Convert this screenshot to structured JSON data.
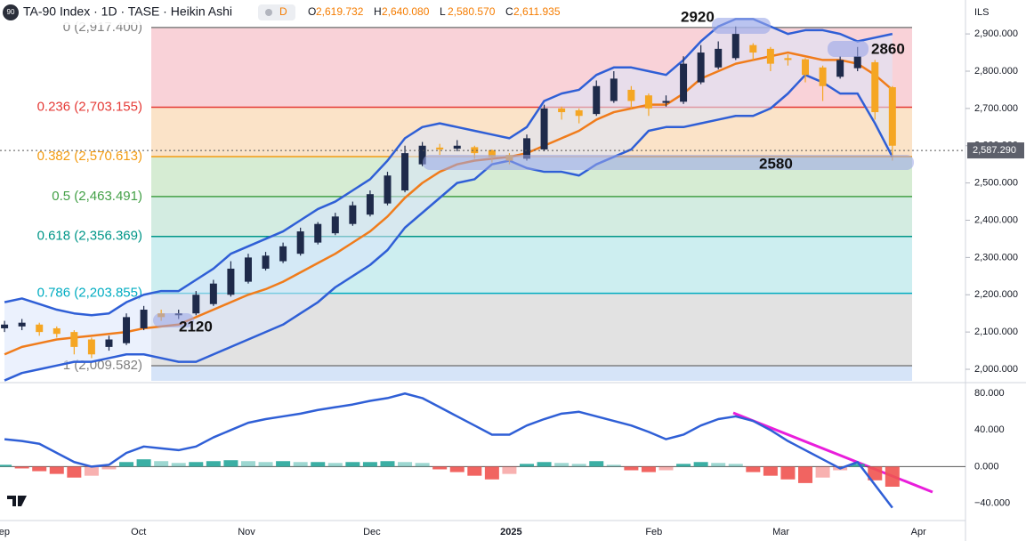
{
  "header": {
    "badge": "90",
    "title": "TA-90 Index · 1D · TASE · Heikin Ashi",
    "interval": "D",
    "ohlc": [
      {
        "key": "O",
        "text": "2,619.732"
      },
      {
        "key": "H",
        "text": "2,640.080"
      },
      {
        "key": "L",
        "text": "2,580.570"
      },
      {
        "key": "C",
        "text": "2,611.935"
      }
    ],
    "currency": "ILS"
  },
  "annotations": [
    "2920",
    "2860",
    "2580",
    "2120"
  ],
  "chart_data": [
    {
      "type": "candlestick",
      "xlim": [
        -0.26,
        55.2
      ],
      "ylim": [
        1969,
        2991
      ],
      "xticks": [
        {
          "value": -0.2,
          "label": "Sep"
        },
        {
          "value": 7.7,
          "label": "Oct"
        },
        {
          "value": 13.9,
          "label": "Nov"
        },
        {
          "value": 21.1,
          "label": "Dec"
        },
        {
          "value": 29.1,
          "label": "2025"
        },
        {
          "value": 37.3,
          "label": "Feb"
        },
        {
          "value": 44.6,
          "label": "Mar"
        },
        {
          "value": 52.5,
          "label": "Apr"
        }
      ],
      "yticks": [
        {
          "value": 2000,
          "label": "2,000.000"
        },
        {
          "value": 2100,
          "label": "2,100.000"
        },
        {
          "value": 2200,
          "label": "2,200.000"
        },
        {
          "value": 2300,
          "label": "2,300.000"
        },
        {
          "value": 2400,
          "label": "2,400.000"
        },
        {
          "value": 2500,
          "label": "2,500.000"
        },
        {
          "value": 2600,
          "label": "2,600.000"
        },
        {
          "value": 2700,
          "label": "2,700.000"
        },
        {
          "value": 2800,
          "label": "2,800.000"
        },
        {
          "value": 2900,
          "label": "2,900.000"
        }
      ],
      "last_price": {
        "value": 2587.29,
        "label": "2,587.290"
      },
      "up_color": "#1e2a4a",
      "down_color": "#f5a623",
      "ohlc": [
        [
          2110,
          2130,
          2100,
          2120
        ],
        [
          2115,
          2135,
          2105,
          2125
        ],
        [
          2120,
          2125,
          2090,
          2100
        ],
        [
          2110,
          2115,
          2085,
          2095
        ],
        [
          2100,
          2105,
          2040,
          2060
        ],
        [
          2080,
          2085,
          2030,
          2040
        ],
        [
          2060,
          2090,
          2050,
          2080
        ],
        [
          2070,
          2150,
          2065,
          2140
        ],
        [
          2110,
          2170,
          2105,
          2160
        ],
        [
          2150,
          2160,
          2130,
          2140
        ],
        [
          2145,
          2160,
          2135,
          2150
        ],
        [
          2150,
          2210,
          2145,
          2200
        ],
        [
          2175,
          2240,
          2170,
          2230
        ],
        [
          2200,
          2290,
          2195,
          2270
        ],
        [
          2235,
          2310,
          2230,
          2300
        ],
        [
          2270,
          2315,
          2265,
          2305
        ],
        [
          2290,
          2340,
          2285,
          2330
        ],
        [
          2310,
          2380,
          2305,
          2370
        ],
        [
          2340,
          2395,
          2335,
          2390
        ],
        [
          2365,
          2420,
          2360,
          2410
        ],
        [
          2390,
          2450,
          2385,
          2440
        ],
        [
          2415,
          2480,
          2410,
          2470
        ],
        [
          2445,
          2530,
          2440,
          2520
        ],
        [
          2480,
          2600,
          2475,
          2580
        ],
        [
          2550,
          2610,
          2545,
          2600
        ],
        [
          2595,
          2605,
          2575,
          2590
        ],
        [
          2592,
          2615,
          2585,
          2600
        ],
        [
          2596,
          2600,
          2565,
          2580
        ],
        [
          2588,
          2590,
          2555,
          2570
        ],
        [
          2575,
          2580,
          2550,
          2560
        ],
        [
          2565,
          2630,
          2560,
          2620
        ],
        [
          2590,
          2710,
          2585,
          2700
        ],
        [
          2700,
          2705,
          2670,
          2690
        ],
        [
          2695,
          2700,
          2660,
          2680
        ],
        [
          2685,
          2775,
          2680,
          2760
        ],
        [
          2720,
          2800,
          2715,
          2780
        ],
        [
          2750,
          2760,
          2700,
          2720
        ],
        [
          2735,
          2740,
          2680,
          2700
        ],
        [
          2715,
          2735,
          2705,
          2720
        ],
        [
          2718,
          2840,
          2712,
          2820
        ],
        [
          2770,
          2870,
          2765,
          2850
        ],
        [
          2810,
          2880,
          2805,
          2860
        ],
        [
          2835,
          2920,
          2830,
          2900
        ],
        [
          2870,
          2875,
          2830,
          2850
        ],
        [
          2860,
          2865,
          2800,
          2820
        ],
        [
          2835,
          2845,
          2815,
          2830
        ],
        [
          2832,
          2835,
          2770,
          2790
        ],
        [
          2810,
          2815,
          2720,
          2760
        ],
        [
          2785,
          2840,
          2780,
          2830
        ],
        [
          2808,
          2865,
          2800,
          2840
        ],
        [
          2824,
          2830,
          2670,
          2690
        ],
        [
          2757,
          2760,
          2560,
          2600
        ]
      ],
      "series": [
        {
          "name": "upper",
          "color": "#2f5fd6",
          "values": [
            2180,
            2190,
            2175,
            2160,
            2150,
            2145,
            2150,
            2180,
            2200,
            2210,
            2210,
            2240,
            2270,
            2310,
            2330,
            2350,
            2370,
            2400,
            2430,
            2450,
            2480,
            2510,
            2560,
            2620,
            2650,
            2660,
            2650,
            2640,
            2630,
            2620,
            2650,
            2720,
            2740,
            2750,
            2790,
            2810,
            2810,
            2800,
            2790,
            2830,
            2880,
            2920,
            2940,
            2940,
            2920,
            2900,
            2910,
            2910,
            2900,
            2880,
            2890,
            2900
          ]
        },
        {
          "name": "basis",
          "color": "#f07c1b",
          "values": [
            2040,
            2060,
            2070,
            2080,
            2085,
            2090,
            2095,
            2100,
            2110,
            2115,
            2120,
            2140,
            2160,
            2180,
            2200,
            2215,
            2235,
            2260,
            2285,
            2310,
            2340,
            2370,
            2410,
            2460,
            2500,
            2530,
            2550,
            2560,
            2565,
            2570,
            2580,
            2600,
            2620,
            2640,
            2670,
            2690,
            2700,
            2710,
            2710,
            2740,
            2780,
            2800,
            2820,
            2830,
            2840,
            2850,
            2840,
            2830,
            2830,
            2820,
            2790,
            2750
          ]
        },
        {
          "name": "lower",
          "color": "#2f5fd6",
          "values": [
            1970,
            1990,
            2000,
            2010,
            2020,
            2020,
            2030,
            2040,
            2040,
            2030,
            2020,
            2020,
            2040,
            2060,
            2080,
            2100,
            2120,
            2150,
            2180,
            2220,
            2250,
            2280,
            2320,
            2380,
            2420,
            2460,
            2500,
            2510,
            2550,
            2560,
            2540,
            2530,
            2530,
            2520,
            2550,
            2570,
            2590,
            2640,
            2650,
            2650,
            2660,
            2670,
            2680,
            2680,
            2700,
            2740,
            2790,
            2770,
            2740,
            2740,
            2660,
            2570
          ]
        }
      ],
      "band_color": "#dbe6fb",
      "fib_levels": [
        {
          "value": 2917.4,
          "label": "0 (2,917.400)",
          "color": "#808080",
          "zone_color": "#f9d2d8"
        },
        {
          "value": 2703.155,
          "label": "0.236 (2,703.155)",
          "color": "#e53935",
          "zone_color": "#fbe3c8"
        },
        {
          "value": 2570.613,
          "label": "0.382 (2,570.613)",
          "color": "#f39c12",
          "zone_color": "#d6ecd3"
        },
        {
          "value": 2463.491,
          "label": "0.5 (2,463.491)",
          "color": "#43a047",
          "zone_color": "#d3ece1"
        },
        {
          "value": 2356.369,
          "label": "0.618 (2,356.369)",
          "color": "#009688",
          "zone_color": "#cdeef0"
        },
        {
          "value": 2203.855,
          "label": "0.786 (2,203.855)",
          "color": "#00acc1",
          "zone_color": "#e2e2e2"
        },
        {
          "value": 2009.582,
          "label": "1 (2,009.582)",
          "color": "#808080",
          "zone_color": "#d6e4f8"
        }
      ]
    },
    {
      "type": "oscillator",
      "ylim": [
        -60,
        90
      ],
      "yticks": [
        {
          "value": 80,
          "label": "80.000"
        },
        {
          "value": 40,
          "label": "40.000"
        },
        {
          "value": 0,
          "label": "0.000"
        },
        {
          "value": -40,
          "label": "−40.000"
        }
      ],
      "line_color": "#2f5fd6",
      "pos_color": "#26a69a",
      "neg_color": "#ef5350",
      "line": [
        30,
        28,
        25,
        15,
        5,
        0,
        2,
        15,
        22,
        20,
        18,
        22,
        32,
        40,
        48,
        52,
        55,
        58,
        62,
        65,
        68,
        72,
        75,
        80,
        75,
        65,
        55,
        45,
        35,
        35,
        45,
        52,
        58,
        60,
        55,
        50,
        45,
        38,
        30,
        35,
        45,
        52,
        55,
        50,
        40,
        28,
        18,
        8,
        -2,
        5,
        -20,
        -45
      ],
      "histogram": [
        2,
        -2,
        -5,
        -8,
        -12,
        -10,
        -3,
        5,
        8,
        6,
        4,
        5,
        6,
        7,
        6,
        5,
        6,
        5,
        5,
        4,
        5,
        5,
        6,
        5,
        4,
        -3,
        -6,
        -10,
        -14,
        -8,
        3,
        5,
        4,
        3,
        6,
        2,
        -4,
        -6,
        -4,
        3,
        5,
        4,
        3,
        -6,
        -10,
        -14,
        -18,
        -12,
        -4,
        3,
        -15,
        -22
      ]
    }
  ]
}
